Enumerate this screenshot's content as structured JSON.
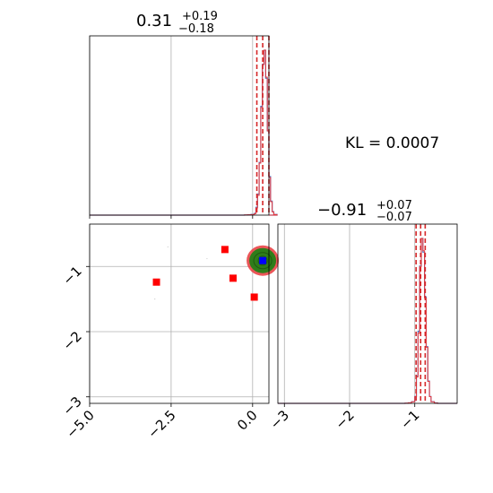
{
  "figure": {
    "kl_text": "KL = 0.0007",
    "colors": {
      "hist_blue": "#4a78c8",
      "hist_red": "#e8383c",
      "quantile_red": "#d62728",
      "grid": "#b0b0b0",
      "marker_red": "#ff0000",
      "truth_blue": "#0000ff",
      "density_green": "#2e7d1a"
    }
  },
  "chart_data": [
    {
      "type": "histogram",
      "panel": "marginal-param-1",
      "title_median": "0.31",
      "title_plus": "+0.19",
      "title_minus": "−0.18",
      "xlim": [
        -5.0,
        0.5
      ],
      "quantiles": [
        0.13,
        0.31,
        0.5
      ],
      "bin_edges": [
        -0.35,
        -0.25,
        -0.15,
        -0.05,
        0.05,
        0.1,
        0.15,
        0.2,
        0.25,
        0.3,
        0.35,
        0.4,
        0.45,
        0.5,
        0.55,
        0.6,
        0.65,
        0.75
      ],
      "counts_blue": [
        0,
        1,
        2,
        4,
        10,
        45,
        120,
        300,
        620,
        860,
        940,
        780,
        480,
        220,
        80,
        20,
        4
      ],
      "counts_red": [
        0,
        1,
        2,
        3,
        8,
        40,
        110,
        290,
        600,
        840,
        920,
        770,
        470,
        210,
        75,
        18,
        3
      ]
    },
    {
      "type": "scatter",
      "panel": "joint-param-1-param-2",
      "xlim": [
        -5.0,
        0.5
      ],
      "ylim": [
        -3.1,
        -0.35
      ],
      "x_ticks": [
        {
          "value": -5.0,
          "label": "−5.0"
        },
        {
          "value": -2.5,
          "label": "−2.5"
        },
        {
          "value": 0.0,
          "label": "0.0"
        }
      ],
      "y_ticks": [
        {
          "value": -1,
          "label": "−1"
        },
        {
          "value": -2,
          "label": "−2"
        },
        {
          "value": -3,
          "label": "−3"
        }
      ],
      "density_center": [
        0.31,
        -0.91
      ],
      "truth_point": [
        0.31,
        -0.91
      ],
      "marker_points": [
        {
          "x": -0.85,
          "y": -0.74
        },
        {
          "x": -0.6,
          "y": -1.18
        },
        {
          "x": -2.95,
          "y": -1.24
        },
        {
          "x": 0.05,
          "y": -1.47
        }
      ]
    },
    {
      "type": "histogram",
      "panel": "marginal-param-2",
      "title_median": "−0.91",
      "title_plus": "+0.07",
      "title_minus": "−0.07",
      "xlim": [
        -3.1,
        -0.35
      ],
      "x_ticks": [
        {
          "value": -3,
          "label": "−3"
        },
        {
          "value": -2,
          "label": "−2"
        },
        {
          "value": -1,
          "label": "−1"
        }
      ],
      "quantiles": [
        -0.98,
        -0.91,
        -0.84
      ],
      "bin_edges": [
        -1.2,
        -1.15,
        -1.1,
        -1.05,
        -1.0,
        -0.975,
        -0.95,
        -0.925,
        -0.9,
        -0.875,
        -0.85,
        -0.825,
        -0.8,
        -0.775,
        -0.75,
        -0.7,
        -0.65,
        -0.6
      ],
      "counts_blue": [
        0,
        1,
        3,
        10,
        40,
        160,
        420,
        800,
        960,
        880,
        620,
        330,
        130,
        40,
        10,
        3,
        0
      ],
      "counts_red": [
        0,
        1,
        3,
        9,
        38,
        150,
        400,
        780,
        940,
        870,
        600,
        320,
        125,
        38,
        9,
        2,
        0
      ]
    }
  ]
}
